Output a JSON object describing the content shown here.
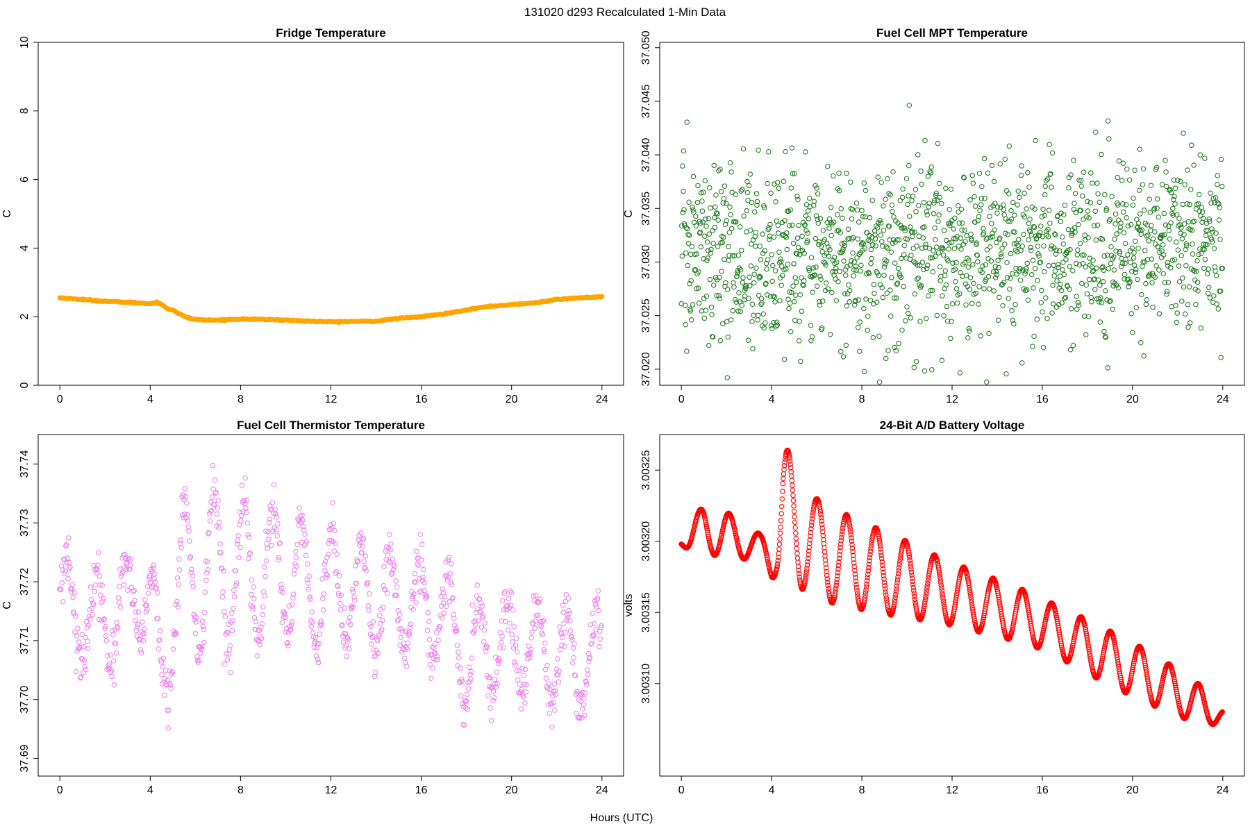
{
  "figure": {
    "title": "131020   d293   Recalculated 1-Min Data",
    "xlabel": "Hours (UTC)"
  },
  "chart_data": [
    {
      "id": "fridge",
      "type": "scatter",
      "title": "Fridge Temperature",
      "xlabel": "",
      "ylabel": "C",
      "color": "#FFA500",
      "marker": "filled",
      "xlim": [
        0,
        24
      ],
      "ylim": [
        0,
        10
      ],
      "xticks": [
        0,
        4,
        8,
        12,
        16,
        20,
        24
      ],
      "xtick_labels": [
        "0",
        "4",
        "8",
        "12",
        "16",
        "20",
        "24"
      ],
      "yticks": [
        0,
        2,
        4,
        6,
        8,
        10
      ],
      "ytick_labels": [
        "0",
        "2",
        "4",
        "6",
        "8",
        "10"
      ],
      "series": [
        {
          "x": [
            0,
            1,
            2,
            3,
            3.5,
            4,
            4.3,
            4.5,
            4.8,
            5.0,
            5.3,
            5.6,
            6.0,
            6.5,
            7,
            8,
            9,
            10,
            11,
            12,
            13,
            14,
            15,
            16,
            17,
            18,
            19,
            20,
            21,
            22,
            23,
            24
          ],
          "y": [
            2.55,
            2.5,
            2.45,
            2.42,
            2.4,
            2.38,
            2.42,
            2.35,
            2.22,
            2.2,
            2.08,
            1.98,
            1.92,
            1.9,
            1.9,
            1.93,
            1.92,
            1.9,
            1.87,
            1.85,
            1.86,
            1.87,
            1.95,
            2.0,
            2.08,
            2.2,
            2.3,
            2.35,
            2.4,
            2.5,
            2.55,
            2.58
          ]
        }
      ]
    },
    {
      "id": "mpt",
      "type": "scatter",
      "title": "Fuel Cell MPT Temperature",
      "xlabel": "",
      "ylabel": "C",
      "color": "#1E7F1E",
      "marker": "open",
      "xlim": [
        0,
        24
      ],
      "ylim": [
        37.0185,
        37.0505
      ],
      "xticks": [
        0,
        4,
        8,
        12,
        16,
        20,
        24
      ],
      "xtick_labels": [
        "0",
        "4",
        "8",
        "12",
        "16",
        "20",
        "24"
      ],
      "yticks": [
        37.02,
        37.025,
        37.03,
        37.035,
        37.04,
        37.045,
        37.05
      ],
      "ytick_labels": [
        "37.020",
        "37.025",
        "37.030",
        "37.035",
        "37.040",
        "37.045",
        "37.050"
      ],
      "series": [
        {
          "description": "1-min noise around a mean",
          "x": [
            0,
            6,
            12,
            18,
            24
          ],
          "mean": [
            37.031,
            37.0305,
            37.031,
            37.031,
            37.032
          ],
          "spread": 0.0065,
          "points_per_hour": 60
        }
      ]
    },
    {
      "id": "thermistor",
      "type": "scatter",
      "title": "Fuel Cell Thermistor Temperature",
      "xlabel": "",
      "ylabel": "C",
      "color": "#EE82EE",
      "marker": "open",
      "xlim": [
        0,
        24
      ],
      "ylim": [
        37.687,
        37.745
      ],
      "xticks": [
        0,
        4,
        8,
        12,
        16,
        20,
        24
      ],
      "xtick_labels": [
        "0",
        "4",
        "8",
        "12",
        "16",
        "20",
        "24"
      ],
      "yticks": [
        37.69,
        37.7,
        37.71,
        37.72,
        37.73,
        37.74
      ],
      "ytick_labels": [
        "37.69",
        "37.70",
        "37.71",
        "37.72",
        "37.73",
        "37.74"
      ],
      "series": [
        {
          "description": "oscillating baseline with ~1.3 h period",
          "x": [
            0,
            1,
            2,
            3,
            4,
            4.5,
            5,
            6,
            7,
            8,
            9,
            10,
            11,
            12,
            13,
            14,
            15,
            16,
            17,
            18,
            19,
            20,
            21,
            22,
            23,
            24
          ],
          "center": [
            37.717,
            37.714,
            37.713,
            37.716,
            37.718,
            37.703,
            37.716,
            37.722,
            37.722,
            37.721,
            37.721,
            37.722,
            37.719,
            37.719,
            37.718,
            37.717,
            37.716,
            37.715,
            37.715,
            37.707,
            37.709,
            37.71,
            37.708,
            37.707,
            37.706,
            37.707
          ],
          "amplitude": [
            0.007,
            0.007,
            0.007,
            0.007,
            0.007,
            0.008,
            0.012,
            0.014,
            0.013,
            0.012,
            0.011,
            0.011,
            0.01,
            0.01,
            0.009,
            0.009,
            0.008,
            0.008,
            0.008,
            0.009,
            0.008,
            0.008,
            0.008,
            0.008,
            0.008,
            0.008
          ],
          "period_hours": 1.3
        }
      ]
    },
    {
      "id": "battery",
      "type": "scatter",
      "title": "24-Bit A/D Battery Voltage",
      "xlabel": "",
      "ylabel": "volts",
      "color": "#FF0000",
      "marker": "open",
      "xlim": [
        0,
        24
      ],
      "ylim": [
        3.003035,
        3.003275
      ],
      "xticks": [
        0,
        4,
        8,
        12,
        16,
        20,
        24
      ],
      "xtick_labels": [
        "0",
        "4",
        "8",
        "12",
        "16",
        "20",
        "24"
      ],
      "yticks": [
        3.0031,
        3.00315,
        3.0032,
        3.00325
      ],
      "ytick_labels": [
        "3.00310",
        "3.00315",
        "3.00320",
        "3.00325"
      ],
      "series": [
        {
          "description": "sinusoidal oscillation, period ~1.3 h, decaying trend",
          "x": [
            0,
            0.5,
            1,
            2,
            3,
            3.5,
            4,
            4.2,
            4.5,
            5.0,
            5.5,
            6,
            7,
            8,
            9,
            10,
            11,
            12,
            13,
            14,
            15,
            16,
            17,
            18,
            19,
            20,
            21,
            22,
            23,
            24
          ],
          "center": [
            3.0032,
            3.003205,
            3.003208,
            3.003205,
            3.003198,
            3.003195,
            3.00319,
            3.0032,
            3.003215,
            3.00321,
            3.003205,
            3.003195,
            3.003188,
            3.003183,
            3.003178,
            3.003173,
            3.003168,
            3.003163,
            3.003158,
            3.003153,
            3.003148,
            3.003142,
            3.003134,
            3.003126,
            3.003118,
            3.00311,
            3.003102,
            3.003094,
            3.003084,
            3.003078
          ],
          "amplitude": [
            3e-06,
            1.2e-05,
            1.7e-05,
            1.6e-05,
            1.1e-05,
            1e-05,
            1.6e-05,
            2.5e-05,
            5.5e-05,
            4.6e-05,
            3.8e-05,
            3.5e-05,
            3.3e-05,
            3.1e-05,
            2.9e-05,
            2.7e-05,
            2.4e-05,
            2.2e-05,
            2.1e-05,
            2e-05,
            1.9e-05,
            1.8e-05,
            1.8e-05,
            1.9e-05,
            1.9e-05,
            1.9e-05,
            1.8e-05,
            1.6e-05,
            1.5e-05,
            5e-06
          ],
          "period_hours": 1.3
        }
      ]
    }
  ]
}
